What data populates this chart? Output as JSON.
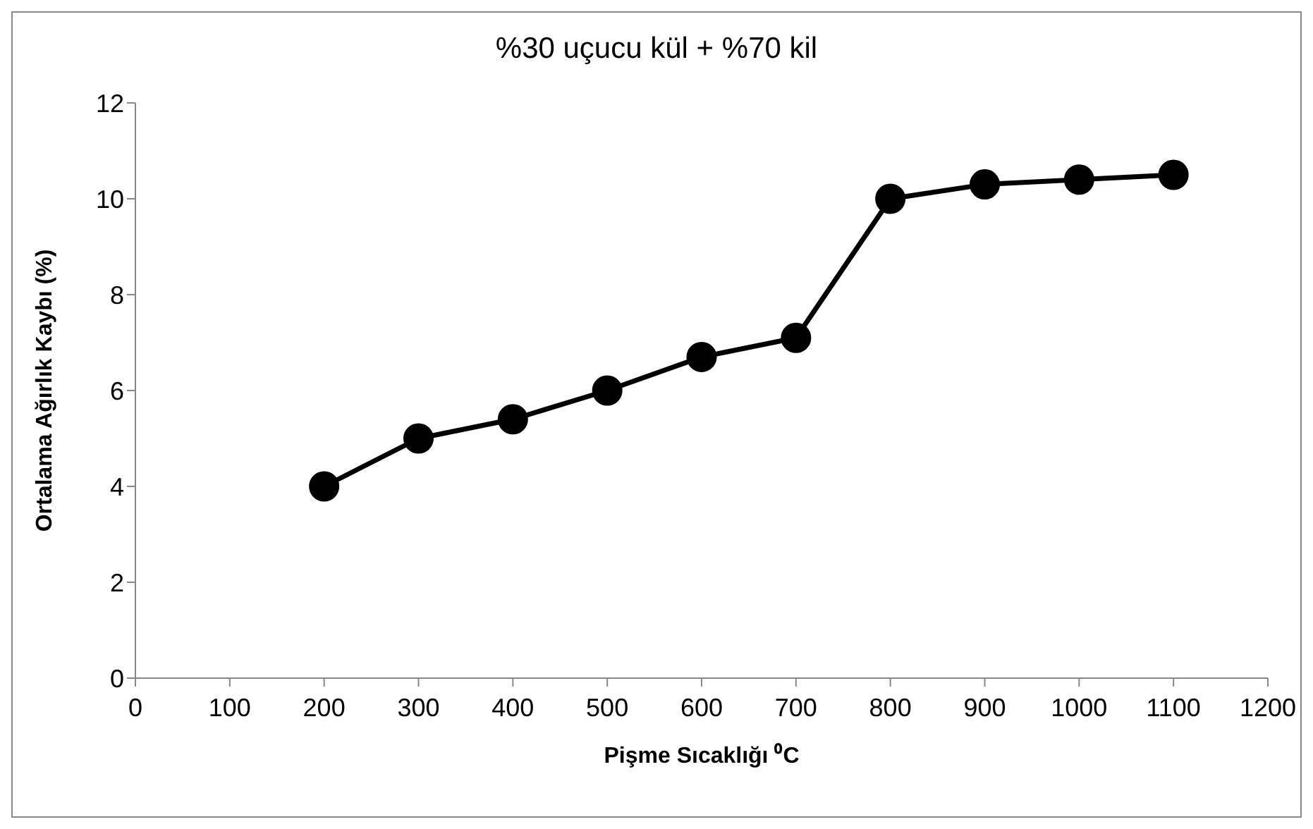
{
  "chart_data": {
    "type": "line",
    "title": "%30 uçucu kül + %70 kil",
    "xlabel": "Pişme Sıcaklığı ⁰C",
    "ylabel": "Ortalama Ağırlık Kaybı (%)",
    "x": [
      200,
      300,
      400,
      500,
      600,
      700,
      800,
      900,
      1000,
      1100
    ],
    "series": [
      {
        "color": "#000000",
        "values": [
          4,
          5,
          5.4,
          6,
          6.7,
          7.1,
          10,
          10.3,
          10.4,
          10.5
        ]
      }
    ],
    "xlim": [
      0,
      1200
    ],
    "xticks": [
      0,
      100,
      200,
      300,
      400,
      500,
      600,
      700,
      800,
      900,
      1000,
      1100,
      1200
    ],
    "ylim": [
      0,
      12
    ],
    "yticks": [
      0,
      2,
      4,
      6,
      8,
      10,
      12
    ],
    "grid": false,
    "legend": false,
    "marker": "circle",
    "line_style": "solid"
  }
}
